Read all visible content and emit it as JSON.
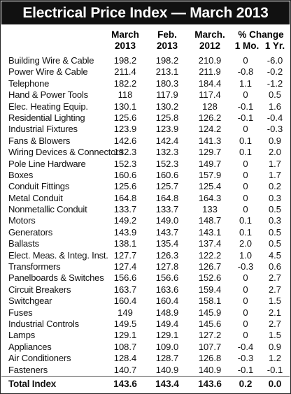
{
  "title": "Electrical Price Index — March 2013",
  "headers": {
    "mar2013": [
      "March",
      "2013"
    ],
    "feb2013": [
      "Feb.",
      "2013"
    ],
    "mar2012": [
      "March.",
      "2012"
    ],
    "change": "% Change",
    "mo1": "1 Mo.",
    "yr1": "1 Yr."
  },
  "rows": [
    {
      "name": "Building Wire & Cable",
      "mar2013": "198.2",
      "feb2013": "198.2",
      "mar2012": "210.9",
      "mo1": "0",
      "yr1": "-6.0"
    },
    {
      "name": "Power Wire & Cable",
      "mar2013": "211.4",
      "feb2013": "213.1",
      "mar2012": "211.9",
      "mo1": "-0.8",
      "yr1": "-0.2"
    },
    {
      "name": "Telephone",
      "mar2013": "182.2",
      "feb2013": "180.3",
      "mar2012": "184.4",
      "mo1": "1.1",
      "yr1": "-1.2"
    },
    {
      "name": "Hand & Power Tools",
      "mar2013": "118",
      "feb2013": "117.9",
      "mar2012": "117.4",
      "mo1": "0",
      "yr1": "0.5"
    },
    {
      "name": "Elec. Heating Equip.",
      "mar2013": "130.1",
      "feb2013": "130.2",
      "mar2012": "128",
      "mo1": "-0.1",
      "yr1": "1.6"
    },
    {
      "name": "Residential Lighting",
      "mar2013": "125.6",
      "feb2013": "125.8",
      "mar2012": "126.2",
      "mo1": "-0.1",
      "yr1": "-0.4"
    },
    {
      "name": "Industrial Fixtures",
      "mar2013": "123.9",
      "feb2013": "123.9",
      "mar2012": "124.2",
      "mo1": "0",
      "yr1": "-0.3"
    },
    {
      "name": "Fans & Blowers",
      "mar2013": "142.6",
      "feb2013": "142.4",
      "mar2012": "141.3",
      "mo1": "0.1",
      "yr1": "0.9"
    },
    {
      "name": "Wiring Devices & Connectors",
      "mar2013": "132.3",
      "feb2013": "132.3",
      "mar2012": "129.7",
      "mo1": "0.1",
      "yr1": "2.0"
    },
    {
      "name": "Pole Line Hardware",
      "mar2013": "152.3",
      "feb2013": "152.3",
      "mar2012": "149.7",
      "mo1": "0",
      "yr1": "1.7"
    },
    {
      "name": "Boxes",
      "mar2013": "160.6",
      "feb2013": "160.6",
      "mar2012": "157.9",
      "mo1": "0",
      "yr1": "1.7"
    },
    {
      "name": "Conduit Fittings",
      "mar2013": "125.6",
      "feb2013": "125.7",
      "mar2012": "125.4",
      "mo1": "0",
      "yr1": "0.2"
    },
    {
      "name": "Metal Conduit",
      "mar2013": "164.8",
      "feb2013": "164.8",
      "mar2012": "164.3",
      "mo1": "0",
      "yr1": "0.3"
    },
    {
      "name": "Nonmetallic Conduit",
      "mar2013": "133.7",
      "feb2013": "133.7",
      "mar2012": "133",
      "mo1": "0",
      "yr1": "0.5"
    },
    {
      "name": "Motors",
      "mar2013": "149.2",
      "feb2013": "149.0",
      "mar2012": "148.7",
      "mo1": "0.1",
      "yr1": "0.3"
    },
    {
      "name": "Generators",
      "mar2013": "143.9",
      "feb2013": "143.7",
      "mar2012": "143.1",
      "mo1": "0.1",
      "yr1": "0.5"
    },
    {
      "name": "Ballasts",
      "mar2013": "138.1",
      "feb2013": "135.4",
      "mar2012": "137.4",
      "mo1": "2.0",
      "yr1": "0.5"
    },
    {
      "name": "Elect. Meas. & Integ. Inst.",
      "mar2013": "127.7",
      "feb2013": "126.3",
      "mar2012": "122.2",
      "mo1": "1.0",
      "yr1": "4.5"
    },
    {
      "name": "Transformers",
      "mar2013": "127.4",
      "feb2013": "127.8",
      "mar2012": "126.7",
      "mo1": "-0.3",
      "yr1": "0.6"
    },
    {
      "name": "Panelboards & Switches",
      "mar2013": "156.6",
      "feb2013": "156.6",
      "mar2012": "152.6",
      "mo1": "0",
      "yr1": "2.7"
    },
    {
      "name": "Circuit Breakers",
      "mar2013": "163.7",
      "feb2013": "163.6",
      "mar2012": "159.4",
      "mo1": "0",
      "yr1": "2.7"
    },
    {
      "name": "Switchgear",
      "mar2013": "160.4",
      "feb2013": "160.4",
      "mar2012": "158.1",
      "mo1": "0",
      "yr1": "1.5"
    },
    {
      "name": "Fuses",
      "mar2013": "149",
      "feb2013": "148.9",
      "mar2012": "145.9",
      "mo1": "0",
      "yr1": "2.1"
    },
    {
      "name": "Industrial Controls",
      "mar2013": "149.5",
      "feb2013": "149.4",
      "mar2012": "145.6",
      "mo1": "0",
      "yr1": "2.7"
    },
    {
      "name": "Lamps",
      "mar2013": "129.1",
      "feb2013": "129.1",
      "mar2012": "127.2",
      "mo1": "0",
      "yr1": "1.5"
    },
    {
      "name": "Appliances",
      "mar2013": "108.7",
      "feb2013": "109.0",
      "mar2012": "107.7",
      "mo1": "-0.4",
      "yr1": "0.9"
    },
    {
      "name": "Air Conditioners",
      "mar2013": "128.4",
      "feb2013": "128.7",
      "mar2012": "126.8",
      "mo1": "-0.3",
      "yr1": "1.2"
    },
    {
      "name": "Fasteners",
      "mar2013": "140.7",
      "feb2013": "140.9",
      "mar2012": "140.9",
      "mo1": "-0.1",
      "yr1": "-0.1"
    }
  ],
  "total": {
    "name": "Total Index",
    "mar2013": "143.6",
    "feb2013": "143.4",
    "mar2012": "143.6",
    "mo1": "0.2",
    "yr1": "0.0"
  },
  "colors": {
    "title_bg": "#111111",
    "title_fg": "#ffffff",
    "border": "#222222"
  }
}
